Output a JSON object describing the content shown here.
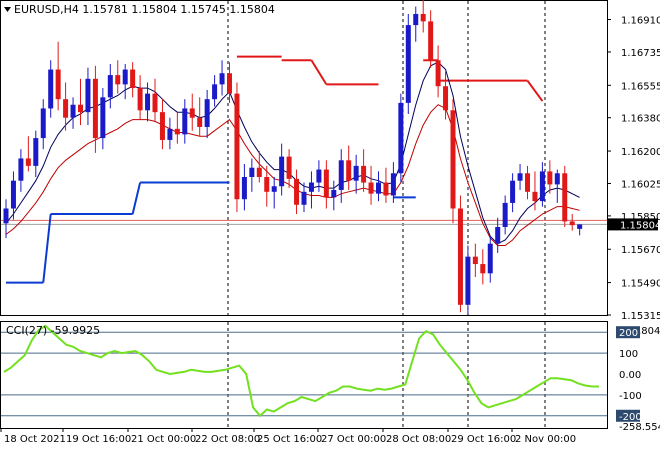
{
  "chart_data": [
    {
      "type": "candlestick",
      "title": "EURUSD,H4  1.15781  1.15804  1.15745  1.15804",
      "symbol": "EURUSD",
      "timeframe": "H4",
      "ohlc_readout": [
        "1.15781",
        "1.15804",
        "1.15745",
        "1.15804"
      ],
      "ylim": [
        1.15315,
        1.1701
      ],
      "y_ticks": [
        "1.16910",
        "1.16735",
        "1.16555",
        "1.16380",
        "1.16200",
        "1.16025",
        "1.15850",
        "1.15670",
        "1.15490",
        "1.15315"
      ],
      "y_tick_values": [
        1.1691,
        1.16735,
        1.16555,
        1.1638,
        1.162,
        1.16025,
        1.1585,
        1.1567,
        1.1549,
        1.15315
      ],
      "current_price_label": "1.15804",
      "current_price": 1.15804,
      "x_tick_labels": [
        "18 Oct 2021",
        "19 Oct 16:00",
        "21 Oct 00:00",
        "22 Oct 08:00",
        "25 Oct 16:00",
        "27 Oct 00:00",
        "28 Oct 08:00",
        "29 Oct 16:00",
        "2 Nov 00:00"
      ],
      "up_color": "#1a1ac8",
      "down_color": "#e01818",
      "indicator_colors": {
        "ma_fast": "#00005a",
        "ma_slow": "#c00000",
        "blue_levels": "#0a3cd2",
        "red_levels": "#e01818"
      },
      "candles": [
        {
          "o": 1.1581,
          "h": 1.1594,
          "l": 1.1573,
          "c": 1.1589
        },
        {
          "o": 1.1589,
          "h": 1.1609,
          "l": 1.1583,
          "c": 1.1604
        },
        {
          "o": 1.1604,
          "h": 1.1621,
          "l": 1.1598,
          "c": 1.1616
        },
        {
          "o": 1.1616,
          "h": 1.1628,
          "l": 1.1609,
          "c": 1.1612
        },
        {
          "o": 1.1612,
          "h": 1.1631,
          "l": 1.1606,
          "c": 1.1627
        },
        {
          "o": 1.1627,
          "h": 1.1648,
          "l": 1.1621,
          "c": 1.1643
        },
        {
          "o": 1.1643,
          "h": 1.1669,
          "l": 1.1638,
          "c": 1.1664
        },
        {
          "o": 1.1664,
          "h": 1.1679,
          "l": 1.1642,
          "c": 1.1648
        },
        {
          "o": 1.1648,
          "h": 1.1657,
          "l": 1.1631,
          "c": 1.1638
        },
        {
          "o": 1.1638,
          "h": 1.1649,
          "l": 1.1632,
          "c": 1.1645
        },
        {
          "o": 1.1645,
          "h": 1.1659,
          "l": 1.1634,
          "c": 1.1641
        },
        {
          "o": 1.1641,
          "h": 1.1665,
          "l": 1.1634,
          "c": 1.1659
        },
        {
          "o": 1.1659,
          "h": 1.1666,
          "l": 1.1619,
          "c": 1.1627
        },
        {
          "o": 1.1627,
          "h": 1.1654,
          "l": 1.1621,
          "c": 1.1649
        },
        {
          "o": 1.1649,
          "h": 1.1667,
          "l": 1.1643,
          "c": 1.1661
        },
        {
          "o": 1.1661,
          "h": 1.1669,
          "l": 1.1651,
          "c": 1.1656
        },
        {
          "o": 1.1656,
          "h": 1.1667,
          "l": 1.1648,
          "c": 1.1664
        },
        {
          "o": 1.1664,
          "h": 1.1668,
          "l": 1.1649,
          "c": 1.1654
        },
        {
          "o": 1.1654,
          "h": 1.1661,
          "l": 1.1637,
          "c": 1.1642
        },
        {
          "o": 1.1642,
          "h": 1.1657,
          "l": 1.1636,
          "c": 1.1651
        },
        {
          "o": 1.1651,
          "h": 1.1659,
          "l": 1.1636,
          "c": 1.1641
        },
        {
          "o": 1.1641,
          "h": 1.1648,
          "l": 1.1621,
          "c": 1.1626
        },
        {
          "o": 1.1626,
          "h": 1.1638,
          "l": 1.1621,
          "c": 1.1632
        },
        {
          "o": 1.1632,
          "h": 1.1641,
          "l": 1.1624,
          "c": 1.1629
        },
        {
          "o": 1.1629,
          "h": 1.1648,
          "l": 1.1624,
          "c": 1.1643
        },
        {
          "o": 1.1643,
          "h": 1.1651,
          "l": 1.1631,
          "c": 1.1638
        },
        {
          "o": 1.1638,
          "h": 1.1649,
          "l": 1.1628,
          "c": 1.1633
        },
        {
          "o": 1.1633,
          "h": 1.1653,
          "l": 1.1627,
          "c": 1.1648
        },
        {
          "o": 1.1648,
          "h": 1.1661,
          "l": 1.1644,
          "c": 1.1656
        },
        {
          "o": 1.1656,
          "h": 1.1669,
          "l": 1.165,
          "c": 1.1662
        },
        {
          "o": 1.1662,
          "h": 1.1668,
          "l": 1.1646,
          "c": 1.1651
        },
        {
          "o": 1.1651,
          "h": 1.1657,
          "l": 1.1587,
          "c": 1.1594
        },
        {
          "o": 1.1594,
          "h": 1.1613,
          "l": 1.1588,
          "c": 1.1606
        },
        {
          "o": 1.1606,
          "h": 1.1616,
          "l": 1.1598,
          "c": 1.1611
        },
        {
          "o": 1.1611,
          "h": 1.162,
          "l": 1.1603,
          "c": 1.1606
        },
        {
          "o": 1.1606,
          "h": 1.1612,
          "l": 1.159,
          "c": 1.1598
        },
        {
          "o": 1.1598,
          "h": 1.1606,
          "l": 1.1589,
          "c": 1.1601
        },
        {
          "o": 1.1601,
          "h": 1.1624,
          "l": 1.1596,
          "c": 1.1617
        },
        {
          "o": 1.1617,
          "h": 1.1621,
          "l": 1.16,
          "c": 1.1605
        },
        {
          "o": 1.1605,
          "h": 1.161,
          "l": 1.1586,
          "c": 1.1591
        },
        {
          "o": 1.1591,
          "h": 1.1603,
          "l": 1.1587,
          "c": 1.1598
        },
        {
          "o": 1.1598,
          "h": 1.1609,
          "l": 1.1589,
          "c": 1.1603
        },
        {
          "o": 1.1603,
          "h": 1.1615,
          "l": 1.1598,
          "c": 1.161
        },
        {
          "o": 1.161,
          "h": 1.1615,
          "l": 1.1589,
          "c": 1.1595
        },
        {
          "o": 1.1595,
          "h": 1.1604,
          "l": 1.1588,
          "c": 1.1599
        },
        {
          "o": 1.1599,
          "h": 1.1621,
          "l": 1.1592,
          "c": 1.1615
        },
        {
          "o": 1.1615,
          "h": 1.1623,
          "l": 1.1599,
          "c": 1.1604
        },
        {
          "o": 1.1604,
          "h": 1.1618,
          "l": 1.1597,
          "c": 1.1612
        },
        {
          "o": 1.1612,
          "h": 1.1621,
          "l": 1.1598,
          "c": 1.1603
        },
        {
          "o": 1.1603,
          "h": 1.1612,
          "l": 1.1591,
          "c": 1.1597
        },
        {
          "o": 1.1597,
          "h": 1.1609,
          "l": 1.1593,
          "c": 1.1603
        },
        {
          "o": 1.1603,
          "h": 1.1611,
          "l": 1.1592,
          "c": 1.1596
        },
        {
          "o": 1.1596,
          "h": 1.1614,
          "l": 1.1592,
          "c": 1.1608
        },
        {
          "o": 1.1608,
          "h": 1.1651,
          "l": 1.1603,
          "c": 1.1646
        },
        {
          "o": 1.1646,
          "h": 1.1694,
          "l": 1.164,
          "c": 1.1688
        },
        {
          "o": 1.1688,
          "h": 1.1698,
          "l": 1.1679,
          "c": 1.1694
        },
        {
          "o": 1.1694,
          "h": 1.1703,
          "l": 1.1684,
          "c": 1.169
        },
        {
          "o": 1.169,
          "h": 1.1696,
          "l": 1.1665,
          "c": 1.1669
        },
        {
          "o": 1.1669,
          "h": 1.1677,
          "l": 1.1649,
          "c": 1.1655
        },
        {
          "o": 1.1655,
          "h": 1.1663,
          "l": 1.1637,
          "c": 1.1642
        },
        {
          "o": 1.1642,
          "h": 1.1648,
          "l": 1.1581,
          "c": 1.1589
        },
        {
          "o": 1.1589,
          "h": 1.1596,
          "l": 1.1533,
          "c": 1.1537
        },
        {
          "o": 1.1537,
          "h": 1.1569,
          "l": 1.1532,
          "c": 1.1563
        },
        {
          "o": 1.1563,
          "h": 1.157,
          "l": 1.1552,
          "c": 1.1559
        },
        {
          "o": 1.1559,
          "h": 1.1567,
          "l": 1.1548,
          "c": 1.1554
        },
        {
          "o": 1.1554,
          "h": 1.1574,
          "l": 1.1549,
          "c": 1.157
        },
        {
          "o": 1.157,
          "h": 1.1584,
          "l": 1.1565,
          "c": 1.1579
        },
        {
          "o": 1.1579,
          "h": 1.1596,
          "l": 1.1575,
          "c": 1.1592
        },
        {
          "o": 1.1592,
          "h": 1.1608,
          "l": 1.1587,
          "c": 1.1604
        },
        {
          "o": 1.1604,
          "h": 1.1613,
          "l": 1.1599,
          "c": 1.1608
        },
        {
          "o": 1.1608,
          "h": 1.1612,
          "l": 1.1594,
          "c": 1.1598
        },
        {
          "o": 1.1598,
          "h": 1.1609,
          "l": 1.1588,
          "c": 1.1593
        },
        {
          "o": 1.1593,
          "h": 1.1614,
          "l": 1.159,
          "c": 1.1609
        },
        {
          "o": 1.1609,
          "h": 1.1615,
          "l": 1.1597,
          "c": 1.1602
        },
        {
          "o": 1.1602,
          "h": 1.161,
          "l": 1.1592,
          "c": 1.1608
        },
        {
          "o": 1.1608,
          "h": 1.1612,
          "l": 1.1579,
          "c": 1.1582
        },
        {
          "o": 1.1582,
          "h": 1.1586,
          "l": 1.1577,
          "c": 1.158
        },
        {
          "o": 1.1578,
          "h": 1.15804,
          "l": 1.15745,
          "c": 1.15804
        }
      ],
      "ma_fast": [
        1.1581,
        1.1586,
        1.1592,
        1.1598,
        1.1604,
        1.1612,
        1.1622,
        1.1629,
        1.1634,
        1.1638,
        1.164,
        1.1643,
        1.1644,
        1.1646,
        1.1648,
        1.165,
        1.1653,
        1.1655,
        1.1654,
        1.1654,
        1.1652,
        1.1648,
        1.1644,
        1.1641,
        1.1641,
        1.164,
        1.1638,
        1.1639,
        1.1643,
        1.1648,
        1.1652,
        1.1642,
        1.1633,
        1.1625,
        1.1619,
        1.1614,
        1.161,
        1.161,
        1.1608,
        1.1604,
        1.1601,
        1.16,
        1.1601,
        1.16,
        1.16,
        1.1603,
        1.1604,
        1.1606,
        1.1607,
        1.1605,
        1.1604,
        1.1602,
        1.1603,
        1.1613,
        1.1629,
        1.1645,
        1.1658,
        1.1666,
        1.1668,
        1.1664,
        1.165,
        1.1628,
        1.1612,
        1.1598,
        1.1584,
        1.1574,
        1.157,
        1.1572,
        1.1577,
        1.1584,
        1.1589,
        1.1592,
        1.1596,
        1.1599,
        1.16,
        1.1599,
        1.1597,
        1.1595
      ],
      "ma_slow": [
        1.1575,
        1.1578,
        1.1582,
        1.1587,
        1.1592,
        1.1598,
        1.1605,
        1.1611,
        1.1615,
        1.1618,
        1.1621,
        1.1624,
        1.1626,
        1.1628,
        1.163,
        1.1632,
        1.1635,
        1.1637,
        1.1637,
        1.1637,
        1.1636,
        1.1634,
        1.1632,
        1.163,
        1.163,
        1.1629,
        1.1628,
        1.1628,
        1.1631,
        1.1634,
        1.1637,
        1.1631,
        1.1624,
        1.1618,
        1.1613,
        1.1609,
        1.1605,
        1.1604,
        1.1602,
        1.1599,
        1.1597,
        1.1596,
        1.1596,
        1.1595,
        1.1595,
        1.1597,
        1.1598,
        1.1599,
        1.16,
        1.1599,
        1.1598,
        1.1597,
        1.1597,
        1.1603,
        1.1612,
        1.1624,
        1.1634,
        1.1641,
        1.1645,
        1.1643,
        1.1632,
        1.1616,
        1.1603,
        1.1592,
        1.1581,
        1.1573,
        1.1569,
        1.1569,
        1.1572,
        1.1577,
        1.158,
        1.1583,
        1.1586,
        1.1588,
        1.159,
        1.159,
        1.1589,
        1.1588
      ],
      "blue_level_segments": [
        {
          "from": 0,
          "to": 5,
          "y": 1.1549
        },
        {
          "from": 5,
          "to": 6,
          "y1": 1.1549,
          "y2": 1.1586
        },
        {
          "from": 6,
          "to": 17,
          "y": 1.1586
        },
        {
          "from": 17,
          "to": 18,
          "y1": 1.1586,
          "y2": 1.1603
        },
        {
          "from": 18,
          "to": 30,
          "y": 1.1603
        },
        {
          "from": 52,
          "to": 55,
          "y": 1.1595
        }
      ],
      "red_level_segments": [
        {
          "from": 31,
          "to": 37,
          "y": 1.1671
        },
        {
          "from": 37,
          "to": 41,
          "y": 1.1669
        },
        {
          "from": 41,
          "to": 43,
          "y1": 1.1669,
          "y2": 1.1656
        },
        {
          "from": 43,
          "to": 50,
          "y": 1.1656
        },
        {
          "from": 56,
          "to": 58,
          "y": 1.1669
        },
        {
          "from": 58,
          "to": 70,
          "y": 1.1658
        },
        {
          "from": 70,
          "to": 72,
          "y1": 1.1658,
          "y2": 1.1647
        }
      ]
    },
    {
      "type": "line",
      "title": "CCI(27) -59.9925",
      "indicator": "CCI(27)",
      "current_value_label": "-59.9925",
      "ylim": [
        -258.554,
        248.8044
      ],
      "y_ticks": [
        "248.8044",
        "200",
        "100",
        "0.00",
        "-100",
        "-200",
        "-258.554"
      ],
      "boxed_ticks": [
        "200",
        "-200"
      ],
      "levels": [
        200,
        100,
        -100,
        -200
      ],
      "line_color": "#73e020",
      "series": [
        {
          "values": [
            10,
            30,
            60,
            90,
            160,
            210,
            230,
            200,
            170,
            140,
            130,
            110,
            100,
            90,
            80,
            100,
            110,
            100,
            105,
            110,
            90,
            60,
            20,
            10,
            0,
            5,
            10,
            20,
            15,
            10,
            10,
            15,
            20,
            30,
            40,
            0,
            -160,
            -200,
            -170,
            -180,
            -160,
            -140,
            -130,
            -110,
            -120,
            -130,
            -110,
            -90,
            -80,
            -60,
            -60,
            -70,
            -75,
            -80,
            -70,
            -75,
            -70,
            -60,
            -50,
            60,
            170,
            205,
            190,
            140,
            100,
            60,
            20,
            -30,
            -90,
            -140,
            -160,
            -150,
            -140,
            -130,
            -120,
            -100,
            -80,
            -60,
            -40,
            -20,
            -20,
            -25,
            -30,
            -45,
            -55,
            -60,
            -60
          ]
        }
      ]
    }
  ]
}
